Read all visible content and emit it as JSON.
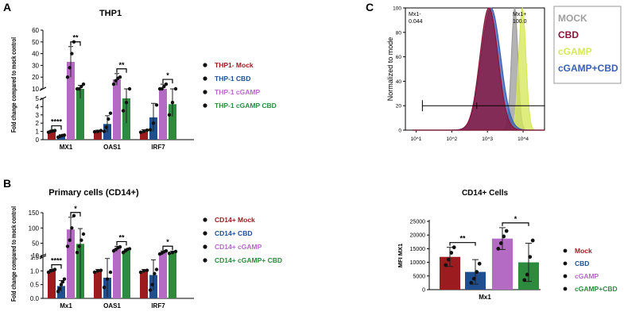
{
  "panels": {
    "a": {
      "letter": "A"
    },
    "b": {
      "letter": "B"
    },
    "c": {
      "letter": "C"
    }
  },
  "colors": {
    "mock": "#9b1b1f",
    "cbd": "#1f4f8f",
    "cgamp": "#b46bc4",
    "cgamp_cbd": "#2e8a3e"
  },
  "chart_data": [
    {
      "id": "panelA",
      "type": "bar",
      "title": "THP1",
      "xlabel": "",
      "ylabel": "Fold change compared to mock control",
      "categories": [
        "MX1",
        "OAS1",
        "IRF7"
      ],
      "axis": {
        "broken": true,
        "lower": {
          "range": [
            0,
            5
          ],
          "ticks": [
            "0",
            "1",
            "2",
            "3",
            "4",
            "5"
          ]
        },
        "upper": {
          "range": [
            10,
            60
          ],
          "ticks": [
            "10",
            "20",
            "30",
            "40",
            "50",
            "60"
          ]
        }
      },
      "series": [
        {
          "name": "THP1- Mock",
          "color": "#9b1b1f",
          "values": [
            1.0,
            1.0,
            1.0
          ],
          "errors": [
            0.1,
            0.15,
            0.2
          ]
        },
        {
          "name": "THP-1 CBD",
          "color": "#1f4f8f",
          "values": [
            0.45,
            1.9,
            2.7
          ],
          "errors": [
            0.15,
            1.0,
            1.7
          ]
        },
        {
          "name": "THP-1 cGAMP",
          "color": "#b46bc4",
          "values": [
            33,
            18,
            10
          ],
          "errors": [
            13,
            5,
            4
          ]
        },
        {
          "name": "THP-1 cGAMP CBD",
          "color": "#2e8a3e",
          "values": [
            9,
            5,
            4.3
          ],
          "errors": [
            4,
            3,
            1.5
          ]
        }
      ],
      "points": [
        [
          [
            0.9,
            1.0,
            1.05,
            1.1
          ],
          [
            0.95,
            1.0,
            1.1
          ],
          [
            0.9,
            1.0,
            1.15
          ]
        ],
        [
          [
            0.3,
            0.4,
            0.5,
            0.55
          ],
          [
            1.0,
            1.5,
            2.5,
            3.2
          ],
          [
            1.2,
            2.0,
            4.2
          ]
        ],
        [
          [
            20,
            28,
            40,
            50
          ],
          [
            14,
            17,
            19,
            20
          ],
          [
            6,
            8,
            12,
            14
          ]
        ],
        [
          [
            6,
            8,
            12,
            14
          ],
          [
            3.5,
            4.5,
            5.5
          ],
          [
            3.0,
            4.5,
            5.5
          ]
        ]
      ],
      "significance": [
        {
          "group": 0,
          "pair": [
            0,
            1
          ],
          "label": "****"
        },
        {
          "group": 0,
          "pair": [
            2,
            3
          ],
          "label": "**"
        },
        {
          "group": 1,
          "pair": [
            2,
            3
          ],
          "label": "**"
        },
        {
          "group": 2,
          "pair": [
            2,
            3
          ],
          "label": "*"
        }
      ]
    },
    {
      "id": "panelB",
      "type": "bar",
      "title": "Primary cells (CD14+)",
      "xlabel": "",
      "ylabel": "Fold change compared to mock control",
      "categories": [
        "Mx1",
        "OAS1",
        "IRF7"
      ],
      "axis": {
        "broken": true,
        "lower": {
          "range": [
            0,
            1.5
          ],
          "ticks": [
            "0.0",
            "0.5",
            "1.0",
            "1.5"
          ]
        },
        "upper": {
          "range": [
            10,
            150
          ],
          "ticks": [
            "10",
            "50",
            "100",
            "150"
          ]
        }
      },
      "series": [
        {
          "name": "CD14+ Mock",
          "color": "#9b1b1f",
          "values": [
            1.0,
            1.0,
            1.0
          ],
          "errors": [
            0.05,
            0.05,
            0.05
          ]
        },
        {
          "name": "CD14+ CBD",
          "color": "#1f4f8f",
          "values": [
            0.45,
            0.75,
            0.85
          ],
          "errors": [
            0.2,
            0.7,
            0.55
          ]
        },
        {
          "name": "CD14+ cGAMP",
          "color": "#b46bc4",
          "values": [
            95,
            32,
            20
          ],
          "errors": [
            40,
            8,
            5
          ]
        },
        {
          "name": "CD14+ cGAMP+ CBD",
          "color": "#2e8a3e",
          "values": [
            48,
            26,
            20
          ],
          "errors": [
            50,
            5,
            4
          ]
        }
      ],
      "points": [
        [
          [
            0.95,
            1.0,
            1.02,
            1.05
          ],
          [
            0.95,
            1.0,
            1.02
          ],
          [
            0.95,
            1.0,
            1.02
          ]
        ],
        [
          [
            0.25,
            0.35,
            0.5,
            0.6,
            0.7
          ],
          [
            0.4,
            0.7,
            0.95
          ],
          [
            0.3,
            0.5,
            0.9,
            1.05
          ]
        ],
        [
          [
            40,
            60,
            100,
            140
          ],
          [
            25,
            30,
            35,
            38
          ],
          [
            15,
            18,
            22,
            25
          ]
        ],
        [
          [
            20,
            40,
            60,
            80
          ],
          [
            20,
            25,
            30,
            32
          ],
          [
            17,
            20,
            23
          ]
        ]
      ],
      "significance": [
        {
          "group": 0,
          "pair": [
            0,
            1
          ],
          "label": "****"
        },
        {
          "group": 0,
          "pair": [
            2,
            3
          ],
          "label": "*"
        },
        {
          "group": 1,
          "pair": [
            2,
            3
          ],
          "label": "**"
        },
        {
          "group": 2,
          "pair": [
            2,
            3
          ],
          "label": "*"
        }
      ]
    },
    {
      "id": "panelC_hist",
      "type": "area",
      "xlabel": "",
      "ylabel": "Normalized to mode",
      "xscale": "log",
      "xticks": [
        "10^1",
        "10^2",
        "10^3",
        "10^4"
      ],
      "yticks": [
        "0",
        "20",
        "40",
        "60",
        "80",
        "100"
      ],
      "gates": [
        {
          "label": "Mx1-",
          "value": "0.044",
          "range": [
            15,
            500
          ]
        },
        {
          "label": "Mx1+",
          "value": "100.0",
          "range": [
            500,
            30000
          ]
        }
      ],
      "series": [
        {
          "name": "MOCK",
          "color": "#9e9e9e",
          "peak": 5800,
          "width": 0.09
        },
        {
          "name": "CBD",
          "color": "#8a1538",
          "peak": 1100,
          "width": 0.25
        },
        {
          "name": "cGAMP",
          "color": "#d6e85a",
          "peak": 9500,
          "width": 0.1
        },
        {
          "name": "cGAMP+CBD",
          "color": "#3a5fb5",
          "peak": 1250,
          "width": 0.27
        }
      ]
    },
    {
      "id": "panelC_bar",
      "type": "bar",
      "title": "CD14+ Cells",
      "xlabel": "Mx1",
      "ylabel": "MFI MX1",
      "ylim": [
        0,
        25000
      ],
      "yticks": [
        0,
        5000,
        10000,
        15000,
        20000,
        25000
      ],
      "categories": [
        "Mx1"
      ],
      "series": [
        {
          "name": "Mock",
          "color": "#9b1b1f",
          "values": [
            12000
          ],
          "errors": [
            3500
          ]
        },
        {
          "name": "CBD",
          "color": "#1f4f8f",
          "values": [
            6500
          ],
          "errors": [
            4500
          ]
        },
        {
          "name": "cGAMP",
          "color": "#b46bc4",
          "values": [
            18700
          ],
          "errors": [
            4000
          ]
        },
        {
          "name": "cGAMP+CBD",
          "color": "#2e8a3e",
          "values": [
            10000
          ],
          "errors": [
            7000
          ]
        }
      ],
      "points": [
        [
          [
            9000,
            11000,
            13500,
            15500
          ]
        ],
        [
          [
            2500,
            4000,
            6500,
            9500
          ]
        ],
        [
          [
            15000,
            17000,
            19500,
            21500
          ]
        ],
        [
          [
            3500,
            5500,
            12000,
            18000
          ]
        ]
      ],
      "significance": [
        {
          "group": 0,
          "pair": [
            0,
            1
          ],
          "label": "**"
        },
        {
          "group": 0,
          "pair": [
            2,
            3
          ],
          "label": "*"
        }
      ]
    }
  ]
}
